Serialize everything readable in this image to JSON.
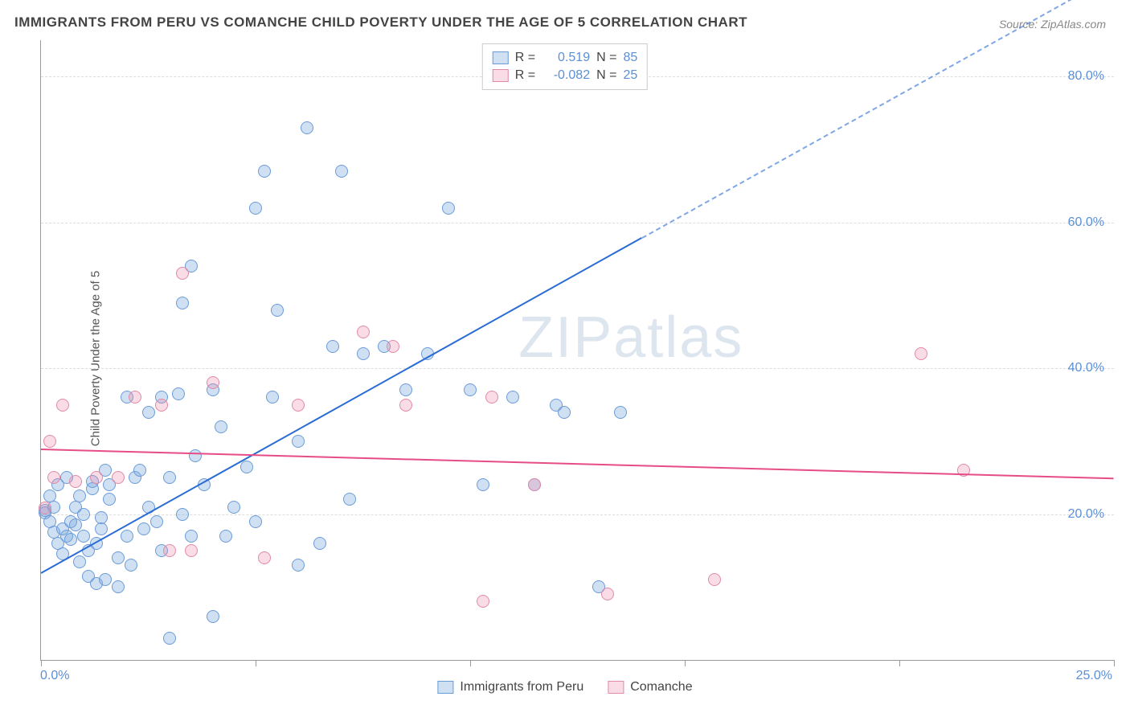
{
  "title": "IMMIGRANTS FROM PERU VS COMANCHE CHILD POVERTY UNDER THE AGE OF 5 CORRELATION CHART",
  "source": "Source: ZipAtlas.com",
  "ylabel": "Child Poverty Under the Age of 5",
  "watermark": "ZIPatlas",
  "chart": {
    "type": "scatter",
    "xlim": [
      0,
      25
    ],
    "ylim": [
      0,
      85
    ],
    "xticks": [
      0,
      5,
      10,
      15,
      20,
      25
    ],
    "xtick_labels": [
      "0.0%",
      "",
      "",
      "",
      "",
      "25.0%"
    ],
    "yticks": [
      20,
      40,
      60,
      80
    ],
    "ytick_labels": [
      "20.0%",
      "40.0%",
      "60.0%",
      "80.0%"
    ],
    "grid_color": "#dddddd",
    "background": "#ffffff",
    "axis_color": "#999999",
    "tick_label_color": "#5b8fd6"
  },
  "series": [
    {
      "name": "Immigrants from Peru",
      "fill": "rgba(120,165,220,0.35)",
      "stroke": "#6a9bd8",
      "trend_color": "#2b6cd4",
      "R": "0.519",
      "N": "85",
      "trend": {
        "x1": 0,
        "y1": 12,
        "x2": 14,
        "y2": 58,
        "dash_x2": 25,
        "dash_y2": 94
      },
      "points": [
        [
          0.1,
          20.5
        ],
        [
          0.1,
          20.2
        ],
        [
          0.2,
          19
        ],
        [
          0.2,
          22.5
        ],
        [
          0.3,
          17.5
        ],
        [
          0.3,
          21
        ],
        [
          0.4,
          16
        ],
        [
          0.4,
          24
        ],
        [
          0.5,
          18
        ],
        [
          0.5,
          14.5
        ],
        [
          0.6,
          25
        ],
        [
          0.6,
          17
        ],
        [
          0.7,
          16.5
        ],
        [
          0.7,
          19
        ],
        [
          0.8,
          18.5
        ],
        [
          0.8,
          21
        ],
        [
          0.9,
          13.5
        ],
        [
          0.9,
          22.5
        ],
        [
          1.0,
          17
        ],
        [
          1.0,
          20
        ],
        [
          1.1,
          11.5
        ],
        [
          1.1,
          15
        ],
        [
          1.2,
          23.5
        ],
        [
          1.2,
          24.5
        ],
        [
          1.3,
          10.5
        ],
        [
          1.3,
          16
        ],
        [
          1.4,
          18
        ],
        [
          1.4,
          19.5
        ],
        [
          1.5,
          11
        ],
        [
          1.5,
          26
        ],
        [
          1.6,
          22
        ],
        [
          1.6,
          24
        ],
        [
          1.8,
          10
        ],
        [
          1.8,
          14
        ],
        [
          2.0,
          17
        ],
        [
          2.0,
          36
        ],
        [
          2.1,
          13
        ],
        [
          2.2,
          25
        ],
        [
          2.3,
          26
        ],
        [
          2.4,
          18
        ],
        [
          2.5,
          21
        ],
        [
          2.5,
          34
        ],
        [
          2.7,
          19
        ],
        [
          2.8,
          15
        ],
        [
          2.8,
          36
        ],
        [
          3.0,
          3
        ],
        [
          3.0,
          25
        ],
        [
          3.2,
          36.5
        ],
        [
          3.3,
          20
        ],
        [
          3.3,
          49
        ],
        [
          3.5,
          17
        ],
        [
          3.5,
          54
        ],
        [
          3.6,
          28
        ],
        [
          3.8,
          24
        ],
        [
          4.0,
          6
        ],
        [
          4.0,
          37
        ],
        [
          4.2,
          32
        ],
        [
          4.3,
          17
        ],
        [
          4.5,
          21
        ],
        [
          4.8,
          26.5
        ],
        [
          5.0,
          62
        ],
        [
          5.0,
          19
        ],
        [
          5.2,
          67
        ],
        [
          5.4,
          36
        ],
        [
          5.5,
          48
        ],
        [
          6.0,
          13
        ],
        [
          6.0,
          30
        ],
        [
          6.2,
          73
        ],
        [
          6.5,
          16
        ],
        [
          6.8,
          43
        ],
        [
          7.0,
          67
        ],
        [
          7.2,
          22
        ],
        [
          7.5,
          42
        ],
        [
          8.0,
          43
        ],
        [
          8.5,
          37
        ],
        [
          9.0,
          42
        ],
        [
          9.5,
          62
        ],
        [
          10.0,
          37
        ],
        [
          10.3,
          24
        ],
        [
          11.0,
          36
        ],
        [
          11.5,
          24
        ],
        [
          12.0,
          35
        ],
        [
          12.2,
          34
        ],
        [
          13.0,
          10
        ],
        [
          13.5,
          34
        ]
      ]
    },
    {
      "name": "Comanche",
      "fill": "rgba(235,140,170,0.30)",
      "stroke": "#e08aa8",
      "trend_color": "#e64d87",
      "R": "-0.082",
      "N": "25",
      "trend": {
        "x1": 0,
        "y1": 29,
        "x2": 25,
        "y2": 25
      },
      "points": [
        [
          0.1,
          20.8
        ],
        [
          0.2,
          30
        ],
        [
          0.3,
          25
        ],
        [
          0.5,
          35
        ],
        [
          0.8,
          24.5
        ],
        [
          1.3,
          25
        ],
        [
          1.8,
          25
        ],
        [
          2.2,
          36
        ],
        [
          2.8,
          35
        ],
        [
          3.0,
          15
        ],
        [
          3.3,
          53
        ],
        [
          3.5,
          15
        ],
        [
          4.0,
          38
        ],
        [
          5.2,
          14
        ],
        [
          6.0,
          35
        ],
        [
          7.5,
          45
        ],
        [
          8.2,
          43
        ],
        [
          8.5,
          35
        ],
        [
          10.3,
          8
        ],
        [
          10.5,
          36
        ],
        [
          11.5,
          24
        ],
        [
          13.2,
          9
        ],
        [
          15.7,
          11
        ],
        [
          20.5,
          42
        ],
        [
          21.5,
          26
        ]
      ]
    }
  ],
  "legend_top": {
    "r_label": "R =",
    "n_label": "N ="
  },
  "legend_bottom": [
    "Immigrants from Peru",
    "Comanche"
  ]
}
